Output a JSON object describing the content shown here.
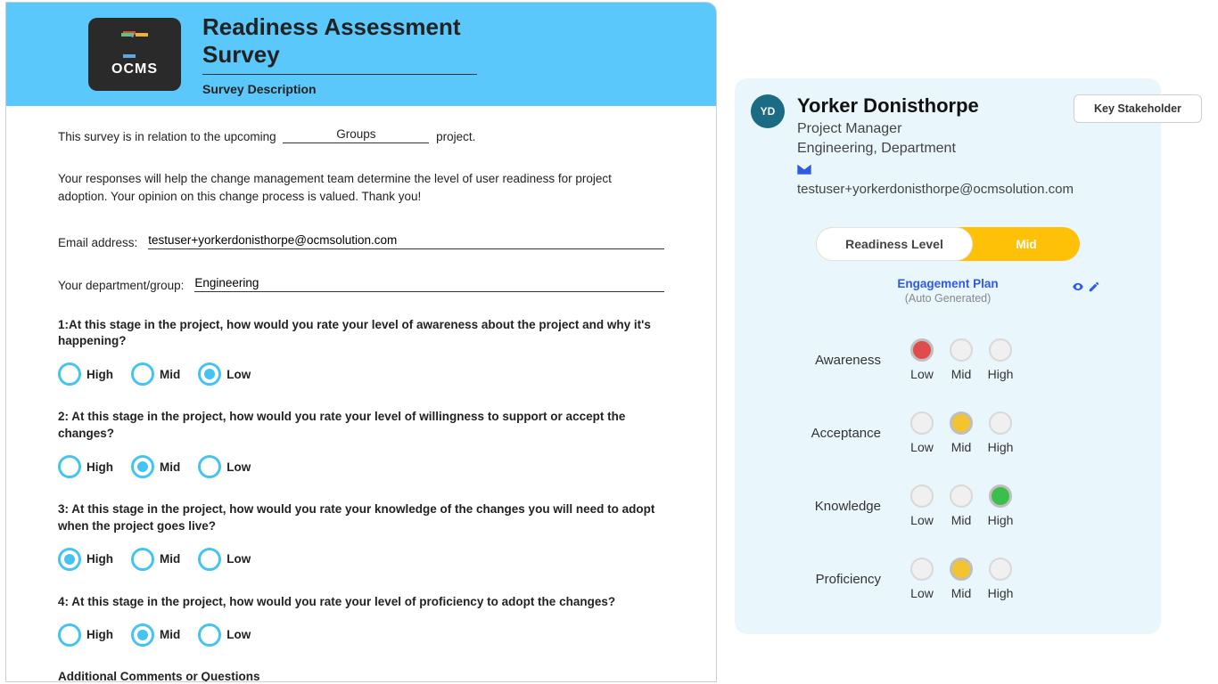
{
  "colors": {
    "header_bg": "#5ac8fa",
    "accent_blue": "#46c4f0",
    "pill_amber": "#ffc107",
    "avatar_bg": "#1b6b82",
    "link_blue": "#2d5be3",
    "panel_bg": "#e9f6fc",
    "dot_red": "#e04b4b",
    "dot_amber": "#f4c430",
    "dot_green": "#3bbf4a",
    "dot_empty": "#f0f0f0"
  },
  "survey": {
    "logo_text": "OCMS",
    "title": "Readiness Assessment Survey",
    "subtitle": "Survey Description",
    "intro_prefix": "This survey is in relation to the upcoming",
    "intro_slot": "Groups",
    "intro_suffix": "project.",
    "intro_para": "Your responses will help the change management team determine the level of user readiness for project adoption. Your opinion on this change process is valued. Thank you!",
    "email_label": "Email address:",
    "email_value": "testuser+yorkerdonisthorpe@ocmsolution.com",
    "dept_label": "Your department/group:",
    "dept_value": "Engineering",
    "option_labels": {
      "high": "High",
      "mid": "Mid",
      "low": "Low"
    },
    "questions": [
      {
        "text": "1:At this stage in the project, how would you rate your level of awareness about the project and why it's happening?",
        "selected": "low"
      },
      {
        "text": "2: At this stage in the project, how would you rate your level of willingness to support or accept the changes?",
        "selected": "mid"
      },
      {
        "text": "3: At this stage in the project, how would you rate your knowledge of the changes you will need to adopt when the project goes live?",
        "selected": "high"
      },
      {
        "text": "4: At this stage in the project, how would you rate your level of proficiency to adopt the changes?",
        "selected": "mid"
      }
    ],
    "comments_label": "Additional Comments or Questions"
  },
  "profile": {
    "avatar_initials": "YD",
    "name": "Yorker Donisthorpe",
    "role": "Project Manager",
    "department": "Engineering, Department",
    "email": "testuser+yorkerdonisthorpe@ocmsolution.com",
    "badge": "Key Stakeholder",
    "pill_left": "Readiness Level",
    "pill_right": "Mid",
    "engagement_label": "Engagement Plan",
    "engagement_sub": "(Auto Generated)",
    "col_labels": {
      "low": "Low",
      "mid": "Mid",
      "high": "High"
    },
    "rows": [
      {
        "label": "Awareness",
        "selected": "low",
        "color": "#e04b4b"
      },
      {
        "label": "Acceptance",
        "selected": "mid",
        "color": "#f4c430"
      },
      {
        "label": "Knowledge",
        "selected": "high",
        "color": "#3bbf4a"
      },
      {
        "label": "Proficiency",
        "selected": "mid",
        "color": "#f4c430"
      }
    ]
  }
}
